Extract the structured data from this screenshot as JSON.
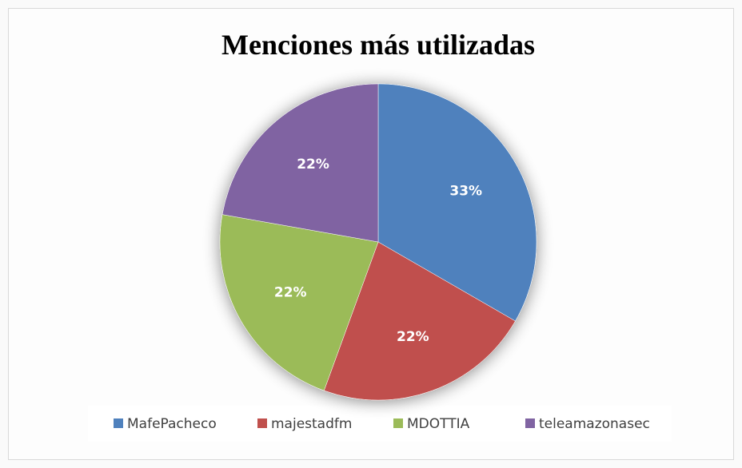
{
  "chart_data": {
    "type": "pie",
    "title": "Menciones más utilizadas",
    "categories": [
      "MafePacheco",
      "majestadfm",
      "MDOTTIA",
      "teleamazonasec"
    ],
    "values": [
      33,
      22,
      22,
      22
    ],
    "value_labels": [
      "33%",
      "22%",
      "22%",
      "22%"
    ],
    "colors": [
      "#4f81bd",
      "#c0504d",
      "#9bbb59",
      "#8064a2"
    ],
    "legend": "bottom"
  }
}
